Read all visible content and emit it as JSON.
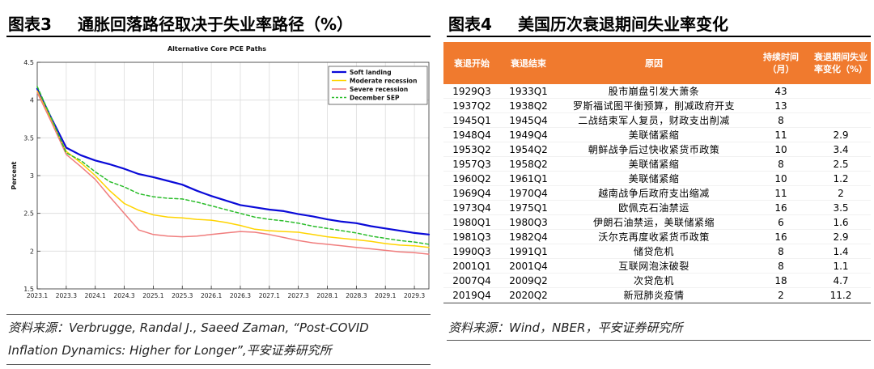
{
  "left_panel": {
    "figure_no": "图表3",
    "title": "通胀回落路径取决于失业率路径（%）",
    "source_line1": "资料来源：Verbrugge, Randal J., Saeed Zaman, “Post-COVID",
    "source_line2": "Inflation Dynamics: Higher for Longer”,平安证券研究所"
  },
  "right_panel": {
    "figure_no": "图表4",
    "title": "美国历次衰退期间失业率变化",
    "source": "资料来源：Wind，NBER，平安证券研究所",
    "table": {
      "headers": [
        "衰退开始",
        "衰退结束",
        "原因",
        "持续时间（月）",
        "衰退期间失业率变化（%）"
      ],
      "rows": [
        [
          "1929Q3",
          "1933Q1",
          "股市崩盘引发大萧条",
          "43",
          ""
        ],
        [
          "1937Q2",
          "1938Q2",
          "罗斯福试图平衡预算，削减政府开支",
          "13",
          ""
        ],
        [
          "1945Q1",
          "1945Q4",
          "二战结束军人复员，财政支出削减",
          "8",
          ""
        ],
        [
          "1948Q4",
          "1949Q4",
          "美联储紧缩",
          "11",
          "2.9"
        ],
        [
          "1953Q2",
          "1954Q2",
          "朝鲜战争后过快收紧货币政策",
          "10",
          "3.4"
        ],
        [
          "1957Q3",
          "1958Q2",
          "美联储紧缩",
          "8",
          "2.5"
        ],
        [
          "1960Q2",
          "1961Q1",
          "美联储紧缩",
          "10",
          "1.2"
        ],
        [
          "1969Q4",
          "1970Q4",
          "越南战争后政府支出缩减",
          "11",
          "2"
        ],
        [
          "1973Q4",
          "1975Q1",
          "欧佩克石油禁运",
          "16",
          "3.5"
        ],
        [
          "1980Q1",
          "1980Q3",
          "伊朗石油禁运，美联储紧缩",
          "6",
          "1.6"
        ],
        [
          "1981Q3",
          "1982Q4",
          "沃尔克再度收紧货币政策",
          "16",
          "2.9"
        ],
        [
          "1990Q3",
          "1991Q1",
          "储贷危机",
          "8",
          "1.4"
        ],
        [
          "2001Q1",
          "2001Q4",
          "互联网泡沫破裂",
          "8",
          "1.1"
        ],
        [
          "2007Q4",
          "2009Q2",
          "次贷危机",
          "18",
          "4.7"
        ],
        [
          "2019Q4",
          "2020Q2",
          "新冠肺炎疫情",
          "2",
          "11.2"
        ]
      ]
    }
  },
  "chart_data": {
    "type": "line",
    "title": "Alternative Core PCE Paths",
    "xlabel": "",
    "ylabel": "Percent",
    "ylim": [
      1.5,
      4.5
    ],
    "yticks": [
      1.5,
      2,
      2.5,
      3,
      3.5,
      4,
      4.5
    ],
    "xlim": [
      2023.0,
      2029.75
    ],
    "xticks": [
      {
        "t": 2023.0,
        "label": "2023.1"
      },
      {
        "t": 2023.5,
        "label": "2023.3"
      },
      {
        "t": 2024.0,
        "label": "2024.1"
      },
      {
        "t": 2024.5,
        "label": "2024.3"
      },
      {
        "t": 2025.0,
        "label": "2025.1"
      },
      {
        "t": 2025.5,
        "label": "2025.3"
      },
      {
        "t": 2026.0,
        "label": "2026.1"
      },
      {
        "t": 2026.5,
        "label": "2026.3"
      },
      {
        "t": 2027.0,
        "label": "2027.1"
      },
      {
        "t": 2027.5,
        "label": "2027.3"
      },
      {
        "t": 2028.0,
        "label": "2028.1"
      },
      {
        "t": 2028.5,
        "label": "2028.3"
      },
      {
        "t": 2029.0,
        "label": "2029.1"
      },
      {
        "t": 2029.5,
        "label": "2029.3"
      }
    ],
    "legend_position": "top-right",
    "grid": true,
    "series": [
      {
        "name": "Soft landing",
        "color": "#0a0ad8",
        "dash": "solid",
        "points": [
          [
            2023.0,
            4.15
          ],
          [
            2023.25,
            3.75
          ],
          [
            2023.5,
            3.37
          ],
          [
            2023.75,
            3.27
          ],
          [
            2024.0,
            3.2
          ],
          [
            2024.25,
            3.15
          ],
          [
            2024.5,
            3.09
          ],
          [
            2024.75,
            3.02
          ],
          [
            2025.0,
            2.98
          ],
          [
            2025.25,
            2.93
          ],
          [
            2025.5,
            2.88
          ],
          [
            2025.75,
            2.8
          ],
          [
            2026.0,
            2.73
          ],
          [
            2026.25,
            2.67
          ],
          [
            2026.5,
            2.61
          ],
          [
            2026.75,
            2.58
          ],
          [
            2027.0,
            2.55
          ],
          [
            2027.25,
            2.53
          ],
          [
            2027.5,
            2.49
          ],
          [
            2027.75,
            2.46
          ],
          [
            2028.0,
            2.42
          ],
          [
            2028.25,
            2.39
          ],
          [
            2028.5,
            2.37
          ],
          [
            2028.75,
            2.33
          ],
          [
            2029.0,
            2.3
          ],
          [
            2029.25,
            2.27
          ],
          [
            2029.5,
            2.24
          ],
          [
            2029.75,
            2.22
          ]
        ]
      },
      {
        "name": "Moderate recession",
        "color": "#ffd400",
        "dash": "solid",
        "points": [
          [
            2023.0,
            4.12
          ],
          [
            2023.25,
            3.72
          ],
          [
            2023.5,
            3.32
          ],
          [
            2023.75,
            3.17
          ],
          [
            2024.0,
            3.0
          ],
          [
            2024.25,
            2.8
          ],
          [
            2024.5,
            2.63
          ],
          [
            2024.75,
            2.54
          ],
          [
            2025.0,
            2.48
          ],
          [
            2025.25,
            2.45
          ],
          [
            2025.5,
            2.44
          ],
          [
            2025.75,
            2.42
          ],
          [
            2026.0,
            2.41
          ],
          [
            2026.25,
            2.38
          ],
          [
            2026.5,
            2.34
          ],
          [
            2026.75,
            2.29
          ],
          [
            2027.0,
            2.27
          ],
          [
            2027.25,
            2.26
          ],
          [
            2027.5,
            2.25
          ],
          [
            2027.75,
            2.22
          ],
          [
            2028.0,
            2.19
          ],
          [
            2028.25,
            2.17
          ],
          [
            2028.5,
            2.15
          ],
          [
            2028.75,
            2.13
          ],
          [
            2029.0,
            2.1
          ],
          [
            2029.25,
            2.08
          ],
          [
            2029.5,
            2.07
          ],
          [
            2029.75,
            2.05
          ]
        ]
      },
      {
        "name": "Severe recession",
        "color": "#f07d7d",
        "dash": "solid",
        "points": [
          [
            2023.0,
            4.1
          ],
          [
            2023.25,
            3.7
          ],
          [
            2023.5,
            3.28
          ],
          [
            2023.75,
            3.12
          ],
          [
            2024.0,
            2.95
          ],
          [
            2024.25,
            2.72
          ],
          [
            2024.5,
            2.5
          ],
          [
            2024.75,
            2.28
          ],
          [
            2025.0,
            2.22
          ],
          [
            2025.25,
            2.2
          ],
          [
            2025.5,
            2.19
          ],
          [
            2025.75,
            2.2
          ],
          [
            2026.0,
            2.22
          ],
          [
            2026.25,
            2.24
          ],
          [
            2026.5,
            2.26
          ],
          [
            2026.75,
            2.25
          ],
          [
            2027.0,
            2.22
          ],
          [
            2027.25,
            2.18
          ],
          [
            2027.5,
            2.14
          ],
          [
            2027.75,
            2.11
          ],
          [
            2028.0,
            2.09
          ],
          [
            2028.25,
            2.07
          ],
          [
            2028.5,
            2.05
          ],
          [
            2028.75,
            2.03
          ],
          [
            2029.0,
            2.01
          ],
          [
            2029.25,
            1.99
          ],
          [
            2029.5,
            1.98
          ],
          [
            2029.75,
            1.96
          ]
        ]
      },
      {
        "name": "December SEP",
        "color": "#2bbd2b",
        "dash": "dashed",
        "points": [
          [
            2023.0,
            4.18
          ],
          [
            2023.25,
            3.75
          ],
          [
            2023.5,
            3.3
          ],
          [
            2023.75,
            3.2
          ],
          [
            2024.0,
            3.05
          ],
          [
            2024.25,
            2.92
          ],
          [
            2024.5,
            2.85
          ],
          [
            2024.75,
            2.76
          ],
          [
            2025.0,
            2.72
          ],
          [
            2025.25,
            2.7
          ],
          [
            2025.5,
            2.69
          ],
          [
            2025.75,
            2.65
          ],
          [
            2026.0,
            2.6
          ],
          [
            2026.25,
            2.55
          ],
          [
            2026.5,
            2.5
          ],
          [
            2026.75,
            2.45
          ],
          [
            2027.0,
            2.42
          ],
          [
            2027.25,
            2.4
          ],
          [
            2027.5,
            2.37
          ],
          [
            2027.75,
            2.33
          ],
          [
            2028.0,
            2.3
          ],
          [
            2028.25,
            2.27
          ],
          [
            2028.5,
            2.24
          ],
          [
            2028.75,
            2.2
          ],
          [
            2029.0,
            2.17
          ],
          [
            2029.25,
            2.14
          ],
          [
            2029.5,
            2.12
          ],
          [
            2029.75,
            2.09
          ]
        ]
      }
    ]
  }
}
